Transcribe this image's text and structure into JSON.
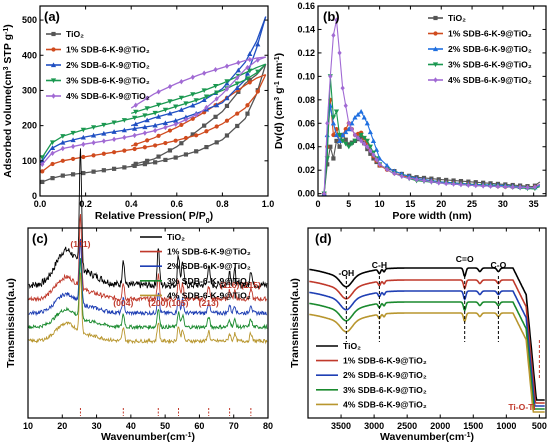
{
  "chart_data": [
    {
      "type": "line",
      "panel_label": "(a)",
      "xlabel": "Relative Pression( P/P",
      "xlabel_sub": "0",
      "xlabel_end": ")",
      "ylabel": "Adsorbed volume(cm",
      "ylabel_sup1": "3",
      "ylabel_mid": " STP g",
      "ylabel_sup2": "-1",
      "ylabel_end": ")",
      "xlim": [
        0,
        1.0
      ],
      "ylim": [
        0,
        540
      ],
      "xticks": [
        "0.0",
        "0.2",
        "0.4",
        "0.6",
        "0.8",
        "1.0"
      ],
      "yticks": [
        "0",
        "100",
        "200",
        "300",
        "400",
        "500"
      ],
      "legend": "top-left",
      "series": [
        {
          "name": "TiO₂",
          "color": "#555555",
          "marker": "square",
          "adsorption": [
            [
              0.01,
              40
            ],
            [
              0.05,
              50
            ],
            [
              0.1,
              58
            ],
            [
              0.2,
              66
            ],
            [
              0.3,
              75
            ],
            [
              0.4,
              84
            ],
            [
              0.5,
              95
            ],
            [
              0.6,
              110
            ],
            [
              0.7,
              130
            ],
            [
              0.8,
              160
            ],
            [
              0.9,
              220
            ],
            [
              0.95,
              290
            ],
            [
              0.99,
              375
            ]
          ],
          "desorption": [
            [
              0.99,
              375
            ],
            [
              0.95,
              345
            ],
            [
              0.9,
              320
            ],
            [
              0.8,
              240
            ],
            [
              0.7,
              190
            ],
            [
              0.6,
              140
            ],
            [
              0.5,
              105
            ],
            [
              0.4,
              88
            ]
          ]
        },
        {
          "name": "1% SDB-6-K-9@TiO₂",
          "color": "#d04b1e",
          "marker": "circle",
          "adsorption": [
            [
              0.01,
              70
            ],
            [
              0.05,
              90
            ],
            [
              0.1,
              100
            ],
            [
              0.2,
              112
            ],
            [
              0.3,
              122
            ],
            [
              0.4,
              132
            ],
            [
              0.5,
              143
            ],
            [
              0.6,
              158
            ],
            [
              0.7,
              175
            ],
            [
              0.8,
              205
            ],
            [
              0.9,
              250
            ],
            [
              0.95,
              290
            ],
            [
              0.99,
              345
            ]
          ],
          "desorption": [
            [
              0.99,
              345
            ],
            [
              0.95,
              335
            ],
            [
              0.9,
              315
            ],
            [
              0.8,
              270
            ],
            [
              0.7,
              230
            ],
            [
              0.6,
              195
            ],
            [
              0.5,
              165
            ],
            [
              0.4,
              142
            ]
          ]
        },
        {
          "name": "2% SDB-6-K-9@TiO₂",
          "color": "#1f4fc2",
          "marker": "triangle",
          "adsorption": [
            [
              0.01,
              100
            ],
            [
              0.05,
              135
            ],
            [
              0.1,
              152
            ],
            [
              0.2,
              168
            ],
            [
              0.3,
              180
            ],
            [
              0.4,
              190
            ],
            [
              0.5,
              200
            ],
            [
              0.6,
              215
            ],
            [
              0.7,
              238
            ],
            [
              0.8,
              265
            ],
            [
              0.9,
              330
            ],
            [
              0.95,
              420
            ],
            [
              0.99,
              510
            ]
          ],
          "desorption": [
            [
              0.99,
              510
            ],
            [
              0.95,
              440
            ],
            [
              0.9,
              380
            ],
            [
              0.8,
              305
            ],
            [
              0.7,
              265
            ],
            [
              0.6,
              240
            ],
            [
              0.5,
              222
            ],
            [
              0.4,
              200
            ]
          ]
        },
        {
          "name": "3% SDB-6-K-9@TiO₂",
          "color": "#1a9850",
          "marker": "triangle-down",
          "adsorption": [
            [
              0.01,
              110
            ],
            [
              0.05,
              150
            ],
            [
              0.1,
              170
            ],
            [
              0.2,
              190
            ],
            [
              0.3,
              205
            ],
            [
              0.4,
              220
            ],
            [
              0.5,
              235
            ],
            [
              0.6,
              255
            ],
            [
              0.7,
              275
            ],
            [
              0.8,
              300
            ],
            [
              0.9,
              330
            ],
            [
              0.95,
              350
            ],
            [
              0.99,
              375
            ]
          ],
          "desorption": [
            [
              0.99,
              375
            ],
            [
              0.95,
              365
            ],
            [
              0.9,
              350
            ],
            [
              0.8,
              320
            ],
            [
              0.7,
              295
            ],
            [
              0.6,
              275
            ],
            [
              0.5,
              255
            ],
            [
              0.4,
              235
            ]
          ]
        },
        {
          "name": "4% SDB-6-K-9@TiO₂",
          "color": "#a16ad4",
          "marker": "diamond",
          "adsorption": [
            [
              0.01,
              90
            ],
            [
              0.05,
              120
            ],
            [
              0.1,
              135
            ],
            [
              0.2,
              148
            ],
            [
              0.3,
              158
            ],
            [
              0.4,
              170
            ],
            [
              0.5,
              185
            ],
            [
              0.6,
              205
            ],
            [
              0.7,
              235
            ],
            [
              0.8,
              290
            ],
            [
              0.9,
              360
            ],
            [
              0.95,
              385
            ],
            [
              0.99,
              395
            ]
          ],
          "desorption": [
            [
              0.99,
              395
            ],
            [
              0.95,
              392
            ],
            [
              0.9,
              385
            ],
            [
              0.8,
              365
            ],
            [
              0.7,
              345
            ],
            [
              0.6,
              320
            ],
            [
              0.5,
              290
            ],
            [
              0.4,
              250
            ]
          ]
        }
      ]
    },
    {
      "type": "line",
      "panel_label": "(b)",
      "xlabel": "Pore width (nm)",
      "ylabel": "Dv(d) (cm",
      "ylabel_sup1": "3",
      "ylabel_mid": " g",
      "ylabel_sup2": "-1",
      "ylabel_mid2": " nm",
      "ylabel_sup3": "-1",
      "ylabel_end": ")",
      "xlim": [
        0,
        37
      ],
      "ylim": [
        -0.002,
        0.16
      ],
      "xticks": [
        "0",
        "5",
        "10",
        "15",
        "20",
        "25",
        "30",
        "35"
      ],
      "yticks": [
        "0.00",
        "0.02",
        "0.04",
        "0.06",
        "0.08",
        "0.10",
        "0.12",
        "0.14",
        "0.16"
      ],
      "legend": "top-right",
      "series": [
        {
          "name": "TiO₂",
          "color": "#555555",
          "marker": "square",
          "points": [
            [
              1,
              0.0
            ],
            [
              1.5,
              0.025
            ],
            [
              2,
              0.04
            ],
            [
              2.5,
              0.03
            ],
            [
              3,
              0.045
            ],
            [
              3.5,
              0.04
            ],
            [
              4,
              0.05
            ],
            [
              5,
              0.042
            ],
            [
              6,
              0.045
            ],
            [
              7,
              0.048
            ],
            [
              8,
              0.038
            ],
            [
              9,
              0.03
            ],
            [
              10,
              0.024
            ],
            [
              12,
              0.02
            ],
            [
              14,
              0.016
            ],
            [
              16,
              0.014
            ],
            [
              20,
              0.012
            ],
            [
              25,
              0.01
            ],
            [
              30,
              0.008
            ],
            [
              35,
              0.006
            ],
            [
              36,
              0.01
            ]
          ]
        },
        {
          "name": "1% SDB-6-K-9@TiO₂",
          "color": "#d04b1e",
          "marker": "circle",
          "points": [
            [
              1,
              0.0
            ],
            [
              1.5,
              0.04
            ],
            [
              2,
              0.08
            ],
            [
              2.5,
              0.05
            ],
            [
              3,
              0.055
            ],
            [
              3.5,
              0.045
            ],
            [
              4,
              0.05
            ],
            [
              5,
              0.06
            ],
            [
              6,
              0.05
            ],
            [
              7,
              0.052
            ],
            [
              8,
              0.042
            ],
            [
              9,
              0.032
            ],
            [
              10,
              0.024
            ],
            [
              12,
              0.018
            ],
            [
              14,
              0.015
            ],
            [
              16,
              0.012
            ],
            [
              20,
              0.01
            ],
            [
              25,
              0.008
            ],
            [
              30,
              0.006
            ],
            [
              35,
              0.005
            ],
            [
              36,
              0.008
            ]
          ]
        },
        {
          "name": "2% SDB-6-K-9@TiO₂",
          "color": "#1f6fe0",
          "marker": "triangle",
          "points": [
            [
              1,
              0.0
            ],
            [
              1.5,
              0.05
            ],
            [
              2,
              0.075
            ],
            [
              2.5,
              0.06
            ],
            [
              3,
              0.05
            ],
            [
              3.5,
              0.045
            ],
            [
              4,
              0.05
            ],
            [
              5,
              0.055
            ],
            [
              6,
              0.065
            ],
            [
              7,
              0.07
            ],
            [
              8,
              0.06
            ],
            [
              9,
              0.045
            ],
            [
              10,
              0.03
            ],
            [
              12,
              0.02
            ],
            [
              14,
              0.016
            ],
            [
              16,
              0.013
            ],
            [
              20,
              0.01
            ],
            [
              25,
              0.008
            ],
            [
              30,
              0.007
            ],
            [
              35,
              0.005
            ],
            [
              36,
              0.007
            ]
          ]
        },
        {
          "name": "3% SDB-6-K-9@TiO₂",
          "color": "#1a9850",
          "marker": "triangle-down",
          "points": [
            [
              1,
              0.0
            ],
            [
              1.5,
              0.03
            ],
            [
              2,
              0.1
            ],
            [
              2.5,
              0.065
            ],
            [
              3,
              0.07
            ],
            [
              3.5,
              0.05
            ],
            [
              4,
              0.045
            ],
            [
              5,
              0.04
            ],
            [
              6,
              0.045
            ],
            [
              7,
              0.05
            ],
            [
              8,
              0.045
            ],
            [
              9,
              0.035
            ],
            [
              10,
              0.025
            ],
            [
              12,
              0.018
            ],
            [
              14,
              0.014
            ],
            [
              16,
              0.011
            ],
            [
              20,
              0.009
            ],
            [
              25,
              0.007
            ],
            [
              30,
              0.006
            ],
            [
              35,
              0.004
            ],
            [
              36,
              0.006
            ]
          ]
        },
        {
          "name": "4% SDB-6-K-9@TiO₂",
          "color": "#a16ad4",
          "marker": "diamond",
          "points": [
            [
              1,
              0.0
            ],
            [
              1.5,
              0.06
            ],
            [
              2,
              0.1
            ],
            [
              2.5,
              0.135
            ],
            [
              3,
              0.148
            ],
            [
              3.5,
              0.12
            ],
            [
              4,
              0.09
            ],
            [
              5,
              0.06
            ],
            [
              6,
              0.05
            ],
            [
              7,
              0.045
            ],
            [
              8,
              0.04
            ],
            [
              9,
              0.033
            ],
            [
              10,
              0.025
            ],
            [
              12,
              0.018
            ],
            [
              14,
              0.014
            ],
            [
              16,
              0.012
            ],
            [
              20,
              0.009
            ],
            [
              25,
              0.007
            ],
            [
              30,
              0.006
            ],
            [
              35,
              0.005
            ],
            [
              36,
              0.008
            ]
          ]
        }
      ]
    },
    {
      "type": "line",
      "panel_label": "(c)",
      "xlabel": "Wavenumber(cm",
      "xlabel_sup": "-1",
      "xlabel_end": ")",
      "ylabel": "Transmission(a.u)",
      "xlim": [
        10,
        80
      ],
      "xticks": [
        "10",
        "20",
        "30",
        "40",
        "50",
        "60",
        "70",
        "80"
      ],
      "legend": "top-right",
      "peaks": [
        {
          "label": "(101)",
          "x": 25.3
        },
        {
          "label": "(004)",
          "x": 37.8
        },
        {
          "label": "(200)",
          "x": 48.0
        },
        {
          "label": "(105)",
          "x": 53.9
        },
        {
          "label": "(213)",
          "x": 62.7
        },
        {
          "label": "(116)",
          "x": 68.8
        },
        {
          "label": "(215)",
          "x": 75.0
        }
      ],
      "series": [
        {
          "name": "TiO₂",
          "color": "#000000"
        },
        {
          "name": "1% SDB-6-K-9@TiO₂",
          "color": "#c0392b"
        },
        {
          "name": "2% SDB-6-K-9@TiO₂",
          "color": "#1f3fb4"
        },
        {
          "name": "3% SDB-6-K-9@TiO₂",
          "color": "#1a8a2e"
        },
        {
          "name": "4% SDB-6-K-9@TiO₂",
          "color": "#b8962e"
        }
      ]
    },
    {
      "type": "line",
      "panel_label": "(d)",
      "xlabel": "Wavenumber(cm",
      "xlabel_sup": "-1",
      "xlabel_end": ")",
      "ylabel": "Transmission(a.u)",
      "xlim": [
        4000,
        400
      ],
      "xticks": [
        "3500",
        "3000",
        "2500",
        "2000",
        "1500",
        "1000",
        "500"
      ],
      "legend": "bottom-left",
      "bands": [
        {
          "label": "-OH",
          "x": 3420
        },
        {
          "label": "C-H",
          "x": 2920
        },
        {
          "label": "C=O",
          "x": 1630
        },
        {
          "label": "C-O",
          "x": 1120
        },
        {
          "label": "Ti-O-Ti",
          "x": 500
        }
      ],
      "series": [
        {
          "name": "TiO₂",
          "color": "#000000"
        },
        {
          "name": "1% SDB-6-K-9@TiO₂",
          "color": "#c0392b"
        },
        {
          "name": "2% SDB-6-K-9@TiO₂",
          "color": "#1f3fb4"
        },
        {
          "name": "3% SDB-6-K-9@TiO₂",
          "color": "#1a8a2e"
        },
        {
          "name": "4% SDB-6-K-9@TiO₂",
          "color": "#b8962e"
        }
      ]
    }
  ]
}
